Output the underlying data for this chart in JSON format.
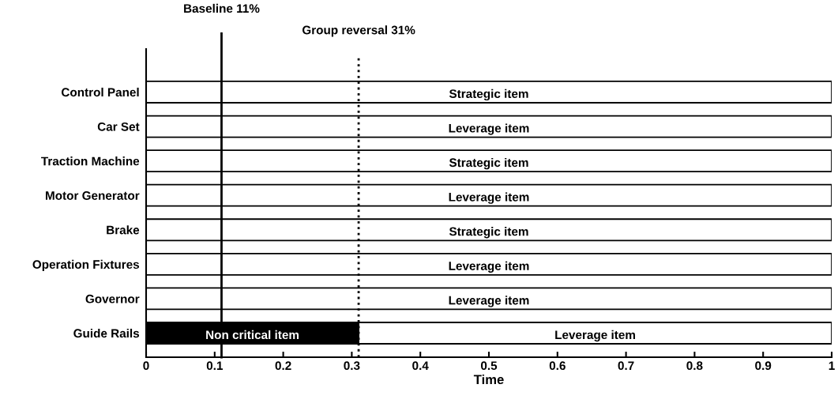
{
  "chart_data": {
    "type": "bar",
    "orientation": "horizontal",
    "stacked": true,
    "xlabel": "Time",
    "categories": [
      "Control Panel",
      "Car Set",
      "Traction Machine",
      "Motor Generator",
      "Brake",
      "Operation Fixtures",
      "Governor",
      "Guide Rails"
    ],
    "series": [
      {
        "color": "#000000",
        "values": [
          null,
          null,
          null,
          null,
          null,
          null,
          null,
          0.31
        ],
        "value_labels": [
          null,
          null,
          null,
          null,
          null,
          null,
          null,
          "Non critical item"
        ]
      },
      {
        "color": "#ffffff",
        "values": [
          1,
          1,
          1,
          1,
          1,
          1,
          1,
          0.69
        ],
        "value_labels": [
          "Strategic item",
          "Leverage item",
          "Strategic item",
          "Leverage item",
          "Strategic item",
          "Leverage item",
          "Leverage item",
          "Leverage item"
        ]
      }
    ],
    "xlim": [
      0,
      1
    ],
    "xticks": [
      0,
      0.1,
      0.2,
      0.3,
      0.4,
      0.5,
      0.6,
      0.7,
      0.8,
      0.9,
      1
    ],
    "ref_lines": [
      {
        "axis": "x",
        "value": 0.11,
        "label": "Baseline 11%",
        "color": "#000000",
        "line_style": "solid"
      },
      {
        "axis": "x",
        "value": 0.31,
        "label": "Group reversal 31%",
        "color": "#000000",
        "line_style": "dotted"
      }
    ],
    "grid": false
  }
}
